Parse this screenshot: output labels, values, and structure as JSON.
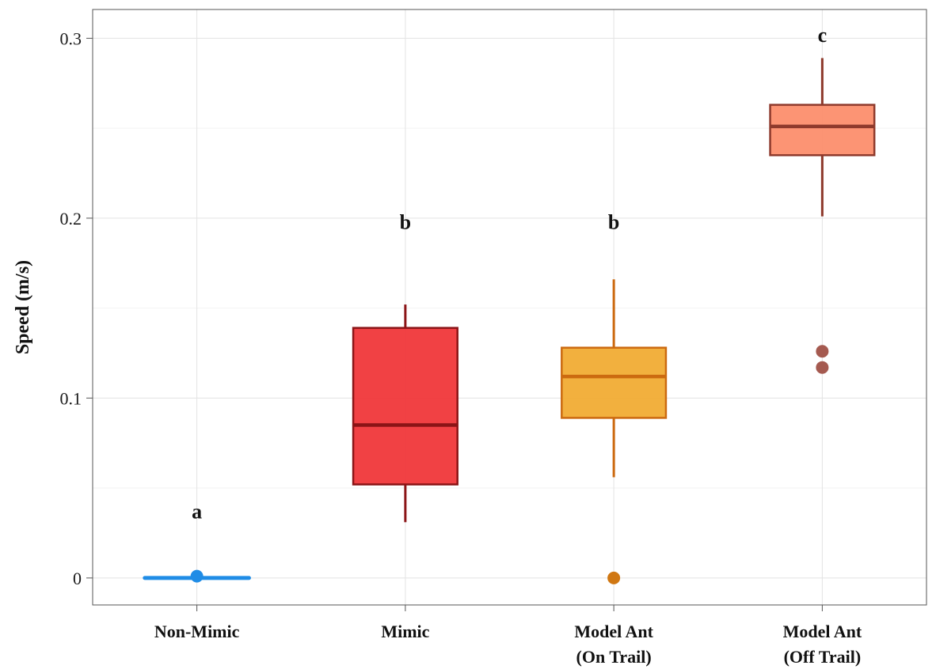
{
  "chart_data": {
    "type": "box",
    "ylabel": "Speed (m/s)",
    "xlabel": "",
    "ylim": [
      -0.015,
      0.316
    ],
    "yticks": [
      0,
      0.1,
      0.2,
      0.3
    ],
    "ytick_labels": [
      "0",
      "0.1",
      "0.2",
      "0.3"
    ],
    "grid": true,
    "categories": [
      {
        "lines": [
          "Non-Mimic"
        ],
        "min": 0,
        "q1": 0,
        "median": 0,
        "q3": 0,
        "max": 0,
        "outliers": [
          0.001
        ],
        "letter": "a",
        "letter_y": 0.037,
        "fill": "#1f8ce6",
        "stroke": "#1f8ce6",
        "outlier_color": "#1f8ce6"
      },
      {
        "lines": [
          "Mimic"
        ],
        "min": 0.031,
        "q1": 0.052,
        "median": 0.085,
        "q3": 0.139,
        "max": 0.152,
        "outliers": [],
        "letter": "b",
        "letter_y": 0.198,
        "fill": "#f0373a",
        "stroke": "#8b1416",
        "outlier_color": "#8b1416"
      },
      {
        "lines": [
          "Model Ant",
          "(On Trail)"
        ],
        "min": 0.056,
        "q1": 0.089,
        "median": 0.112,
        "q3": 0.128,
        "max": 0.166,
        "outliers": [
          0.0
        ],
        "letter": "b",
        "letter_y": 0.198,
        "fill": "#f1ac34",
        "stroke": "#cc6a10",
        "outlier_color": "#d07712"
      },
      {
        "lines": [
          "Model Ant",
          "(Off Trail)"
        ],
        "min": 0.201,
        "q1": 0.235,
        "median": 0.251,
        "q3": 0.263,
        "max": 0.289,
        "outliers": [
          0.126,
          0.117
        ],
        "letter": "c",
        "letter_y": 0.302,
        "fill": "#fc8e6d",
        "stroke": "#8e3a2c",
        "outlier_color": "#a55a50"
      }
    ]
  }
}
